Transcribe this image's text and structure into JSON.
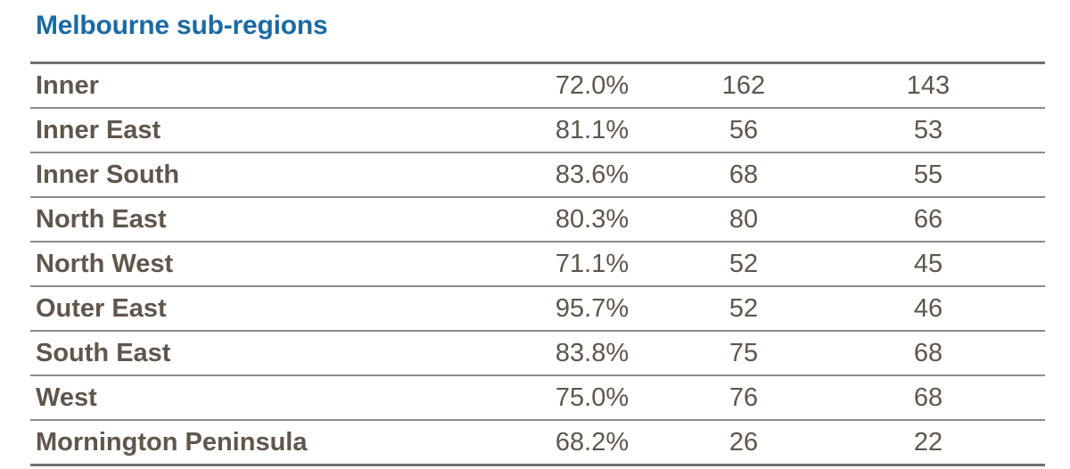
{
  "title": "Melbourne sub-regions",
  "rows": [
    {
      "name": "Inner",
      "pct": "72.0%",
      "col1": "162",
      "col2": "143"
    },
    {
      "name": "Inner East",
      "pct": "81.1%",
      "col1": "56",
      "col2": "53"
    },
    {
      "name": "Inner South",
      "pct": "83.6%",
      "col1": "68",
      "col2": "55"
    },
    {
      "name": "North East",
      "pct": "80.3%",
      "col1": "80",
      "col2": "66"
    },
    {
      "name": "North West",
      "pct": "71.1%",
      "col1": "52",
      "col2": "45"
    },
    {
      "name": "Outer East",
      "pct": "95.7%",
      "col1": "52",
      "col2": "46"
    },
    {
      "name": "South East",
      "pct": "83.8%",
      "col1": "75",
      "col2": "68"
    },
    {
      "name": "West",
      "pct": "75.0%",
      "col1": "76",
      "col2": "68"
    },
    {
      "name": "Mornington Peninsula",
      "pct": "68.2%",
      "col1": "26",
      "col2": "22"
    }
  ]
}
